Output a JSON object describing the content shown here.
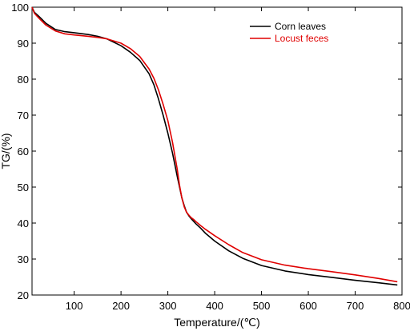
{
  "chart_data": {
    "type": "line",
    "xlabel": "Temperature/(℃)",
    "ylabel": "TG/(%)",
    "xlim": [
      10,
      800
    ],
    "ylim": [
      20,
      100
    ],
    "x_ticks": [
      100,
      200,
      300,
      400,
      500,
      600,
      700,
      800
    ],
    "y_ticks": [
      20,
      30,
      40,
      50,
      60,
      70,
      80,
      90,
      100
    ],
    "grid": false,
    "legend_position": "top-right",
    "series": [
      {
        "name": "Corn leaves",
        "color": "#000000",
        "x": [
          10,
          15,
          25,
          40,
          60,
          80,
          100,
          130,
          150,
          170,
          200,
          220,
          240,
          260,
          270,
          280,
          290,
          300,
          310,
          320,
          325,
          330,
          335,
          340,
          345,
          350,
          355,
          360,
          370,
          380,
          400,
          430,
          460,
          500,
          550,
          600,
          650,
          700,
          750,
          790
        ],
        "y": [
          100,
          98.6,
          97.4,
          95.5,
          93.8,
          93.2,
          92.9,
          92.4,
          91.9,
          91.2,
          89.3,
          87.5,
          85.2,
          81.5,
          78.5,
          74.5,
          70.0,
          65.0,
          59.5,
          53.0,
          50.0,
          47.0,
          44.8,
          43.0,
          42.0,
          41.2,
          40.5,
          39.8,
          38.6,
          37.2,
          35.0,
          32.3,
          30.2,
          28.2,
          26.7,
          25.7,
          24.9,
          24.1,
          23.4,
          22.8
        ]
      },
      {
        "name": "Locust feces",
        "color": "#e00000",
        "x": [
          10,
          15,
          25,
          40,
          60,
          80,
          100,
          130,
          150,
          170,
          200,
          220,
          240,
          260,
          270,
          280,
          290,
          300,
          310,
          320,
          325,
          330,
          335,
          340,
          345,
          350,
          355,
          360,
          370,
          380,
          400,
          430,
          460,
          500,
          550,
          600,
          650,
          700,
          750,
          790
        ],
        "y": [
          100,
          98.3,
          96.9,
          95.0,
          93.4,
          92.6,
          92.3,
          91.9,
          91.6,
          91.2,
          90.0,
          88.5,
          86.3,
          82.8,
          80.3,
          77.0,
          73.0,
          68.5,
          62.5,
          55.0,
          50.5,
          47.0,
          44.5,
          43.0,
          42.2,
          41.5,
          41.0,
          40.4,
          39.3,
          38.3,
          36.5,
          34.0,
          31.8,
          29.8,
          28.3,
          27.3,
          26.5,
          25.6,
          24.6,
          23.7
        ]
      }
    ]
  }
}
